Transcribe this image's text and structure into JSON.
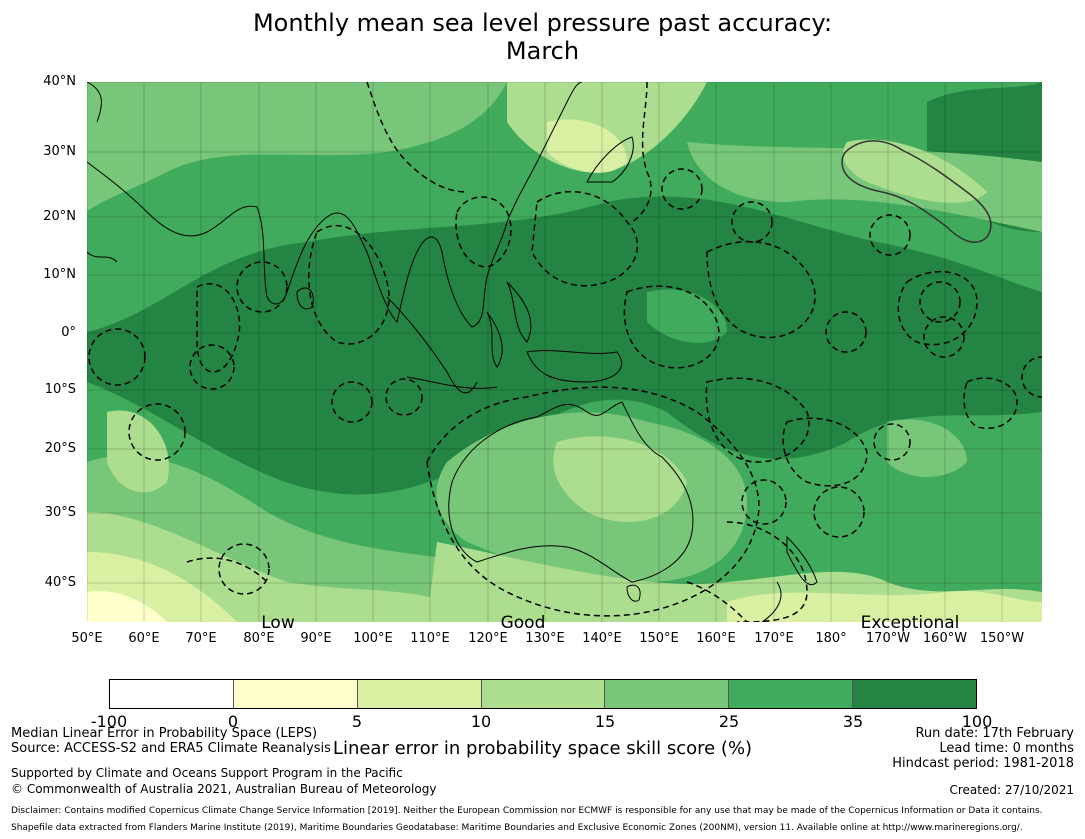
{
  "title": {
    "line1": "Monthly mean sea level pressure past accuracy:",
    "line2": "March"
  },
  "map": {
    "lat_labels": [
      "40°N",
      "30°N",
      "20°N",
      "10°N",
      "0°",
      "10°S",
      "20°S",
      "30°S",
      "40°S"
    ],
    "lon_labels": [
      "50°E",
      "60°E",
      "70°E",
      "80°E",
      "90°E",
      "100°E",
      "110°E",
      "120°E",
      "130°E",
      "140°E",
      "150°E",
      "160°E",
      "170°E",
      "180°",
      "170°W",
      "160°W",
      "150°W"
    ],
    "region_labels": [
      "Low",
      "Good",
      "Exceptional"
    ],
    "colors": {
      "ocean_base": "#41ab5d",
      "strong": "#238443",
      "medium": "#78c679",
      "light": "#addd8e",
      "pale": "#d9f0a3",
      "palest": "#ffffcc",
      "land_outline": "#000000",
      "eez_outline": "#000000"
    }
  },
  "colorbar": {
    "colors": [
      "#ffffff",
      "#ffffcc",
      "#d9f0a3",
      "#addd8e",
      "#78c679",
      "#41ab5d",
      "#238443"
    ],
    "ticks": [
      "-100",
      "0",
      "5",
      "10",
      "15",
      "25",
      "35",
      "100"
    ],
    "label": "Linear error in probability space skill score (%)"
  },
  "footer": {
    "left1": "Median Linear Error in Probability Space (LEPS)",
    "left2": "Source: ACCESS-S2 and ERA5 Climate Reanalysis",
    "left3": "Supported by Climate and Oceans Support Program in the Pacific",
    "left4": "© Commonwealth of Australia 2021, Australian Bureau of Meteorology",
    "right1": "Run date: 17th February",
    "right2": "Lead time: 0 months",
    "right3": "Hindcast period: 1981-2018",
    "created": "Created: 27/10/2021",
    "disclaimer": "Disclaimer: Contains modified Copernicus Climate Change Service Information [2019]. Neither the European Commission nor ECMWF is responsible for any use that may be made of the Copernicus Information or Data it contains.",
    "shapefile": "Shapefile data extracted from Flanders Marine Institute (2019), Maritime Boundaries Geodatabase: Maritime Boundaries and Exclusive Economic Zones (200NM), version 11. Available online at http://www.marineregions.org/."
  }
}
